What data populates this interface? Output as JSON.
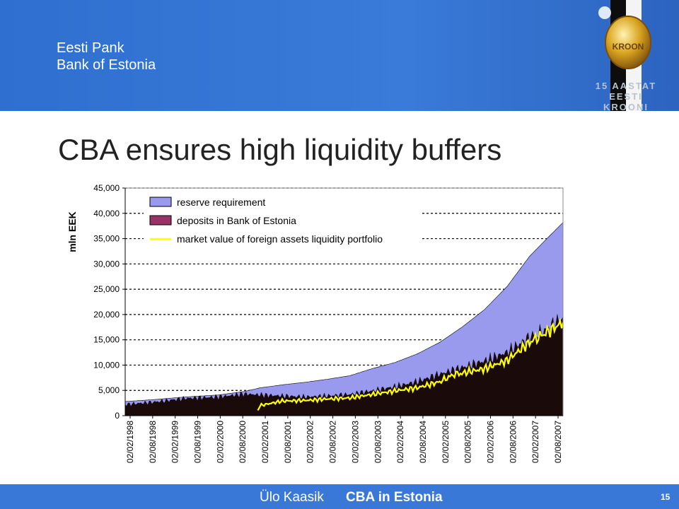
{
  "header": {
    "org_name_et": "Eesti Pank",
    "org_name_en": "Bank of Estonia",
    "badge_line1": "15 AASTAT",
    "badge_line2": "EESTI KROONI",
    "coin_text": "KROON",
    "coin_icon": "kroon-coin-icon"
  },
  "slide": {
    "title": "CBA ensures high liquidity buffers"
  },
  "footer": {
    "author": "Ülo Kaasik",
    "topic": "CBA in Estonia",
    "page_number": "15"
  },
  "colors": {
    "header_blue": "#3a7ad8",
    "reserve_fill": "#9999ee",
    "deposits_fill": "#1a0a0a",
    "deposits_legend": "#993366",
    "liquidity_line": "#ffff00"
  },
  "chart_data": {
    "type": "area",
    "ylabel": "mln EEK",
    "ylim": [
      0,
      45000
    ],
    "yticks": [
      "45,000",
      "40,000",
      "35,000",
      "30,000",
      "25,000",
      "20,000",
      "15,000",
      "10,000",
      "5,000",
      "0"
    ],
    "ytick_values": [
      45000,
      40000,
      35000,
      30000,
      25000,
      20000,
      15000,
      10000,
      5000,
      0
    ],
    "grid": "horizontal dashed",
    "legend_position": "top-left",
    "x_tick_labels": [
      "02/02/1998",
      "02/08/1998",
      "02/02/1999",
      "02/08/1999",
      "02/02/2000",
      "02/08/2000",
      "02/02/2001",
      "02/08/2001",
      "02/02/2002",
      "02/08/2002",
      "02/02/2003",
      "02/08/2003",
      "02/02/2004",
      "02/08/2004",
      "02/02/2005",
      "02/08/2005",
      "02/02/2006",
      "02/08/2006",
      "02/02/2007",
      "02/08/2007"
    ],
    "x_range": [
      "1998-02-02",
      "2007-10-31"
    ],
    "series": [
      {
        "name": "reserve requirement",
        "kind": "area",
        "color": "#9999ee",
        "points": [
          [
            "1998-02-02",
            2800
          ],
          [
            "1998-10-01",
            3200
          ],
          [
            "1999-06-01",
            3700
          ],
          [
            "2000-03-01",
            4100
          ],
          [
            "2000-10-01",
            4800
          ],
          [
            "2001-02-01",
            5500
          ],
          [
            "2001-08-01",
            6100
          ],
          [
            "2002-02-01",
            6600
          ],
          [
            "2002-08-01",
            7200
          ],
          [
            "2003-02-01",
            7900
          ],
          [
            "2003-08-01",
            9300
          ],
          [
            "2004-02-01",
            10500
          ],
          [
            "2004-08-01",
            12200
          ],
          [
            "2005-02-01",
            14500
          ],
          [
            "2005-08-01",
            17500
          ],
          [
            "2006-02-01",
            21000
          ],
          [
            "2006-08-01",
            25500
          ],
          [
            "2007-02-01",
            31500
          ],
          [
            "2007-06-01",
            34500
          ],
          [
            "2007-10-31",
            38200
          ]
        ]
      },
      {
        "name": "deposits in Bank of Estonia",
        "kind": "area",
        "color": "#1a0a0a",
        "legend_color": "#993366",
        "points": [
          [
            "1998-02-02",
            2200
          ],
          [
            "1998-10-01",
            2700
          ],
          [
            "1999-06-01",
            3400
          ],
          [
            "2000-03-01",
            3700
          ],
          [
            "2000-10-01",
            4300
          ],
          [
            "2001-02-01",
            4100
          ],
          [
            "2001-08-01",
            3900
          ],
          [
            "2002-02-01",
            3700
          ],
          [
            "2002-08-01",
            3900
          ],
          [
            "2003-02-01",
            4200
          ],
          [
            "2003-08-01",
            4900
          ],
          [
            "2004-02-01",
            5700
          ],
          [
            "2004-08-01",
            6700
          ],
          [
            "2005-02-01",
            8200
          ],
          [
            "2005-08-01",
            9500
          ],
          [
            "2006-02-01",
            10800
          ],
          [
            "2006-08-01",
            12500
          ],
          [
            "2007-02-01",
            15500
          ],
          [
            "2007-06-01",
            16800
          ],
          [
            "2007-10-31",
            19500
          ]
        ]
      },
      {
        "name": "market value of foreign assets liquidity portfolio",
        "kind": "line",
        "color": "#ffff00",
        "points": [
          [
            "2001-01-15",
            1000
          ],
          [
            "2001-02-01",
            2000
          ],
          [
            "2001-08-01",
            2900
          ],
          [
            "2002-02-01",
            3000
          ],
          [
            "2002-08-01",
            3300
          ],
          [
            "2003-02-01",
            3500
          ],
          [
            "2003-08-01",
            4200
          ],
          [
            "2004-02-01",
            4900
          ],
          [
            "2004-08-01",
            5500
          ],
          [
            "2005-02-01",
            6700
          ],
          [
            "2005-06-01",
            8200
          ],
          [
            "2005-08-01",
            8400
          ],
          [
            "2006-02-01",
            9300
          ],
          [
            "2006-08-01",
            10900
          ],
          [
            "2007-02-01",
            14500
          ],
          [
            "2007-06-01",
            16200
          ],
          [
            "2007-10-31",
            18400
          ]
        ]
      }
    ]
  }
}
